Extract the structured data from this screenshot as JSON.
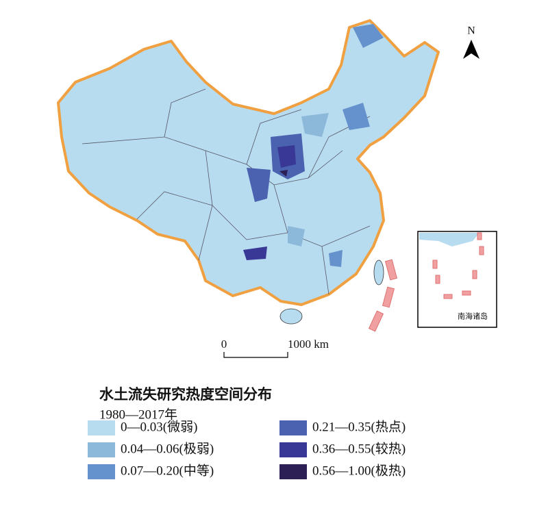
{
  "map": {
    "north_label": "N",
    "scale": {
      "start": "0",
      "end": "1000 km"
    },
    "inset_label": "南海诸岛"
  },
  "legend": {
    "title": "水土流失研究热度空间分布",
    "subtitle": "1980—2017年",
    "items": [
      {
        "label": "0—0.03(微弱)",
        "color": "#b7dcef"
      },
      {
        "label": "0.04—0.06(极弱)",
        "color": "#8cb8da"
      },
      {
        "label": "0.07—0.20(中等)",
        "color": "#6592cc"
      },
      {
        "label": "0.21—0.35(热点)",
        "color": "#4a62b0"
      },
      {
        "label": "0.36—0.55(较热)",
        "color": "#3a3896"
      },
      {
        "label": "0.56—1.00(极热)",
        "color": "#2b1f55"
      }
    ]
  }
}
